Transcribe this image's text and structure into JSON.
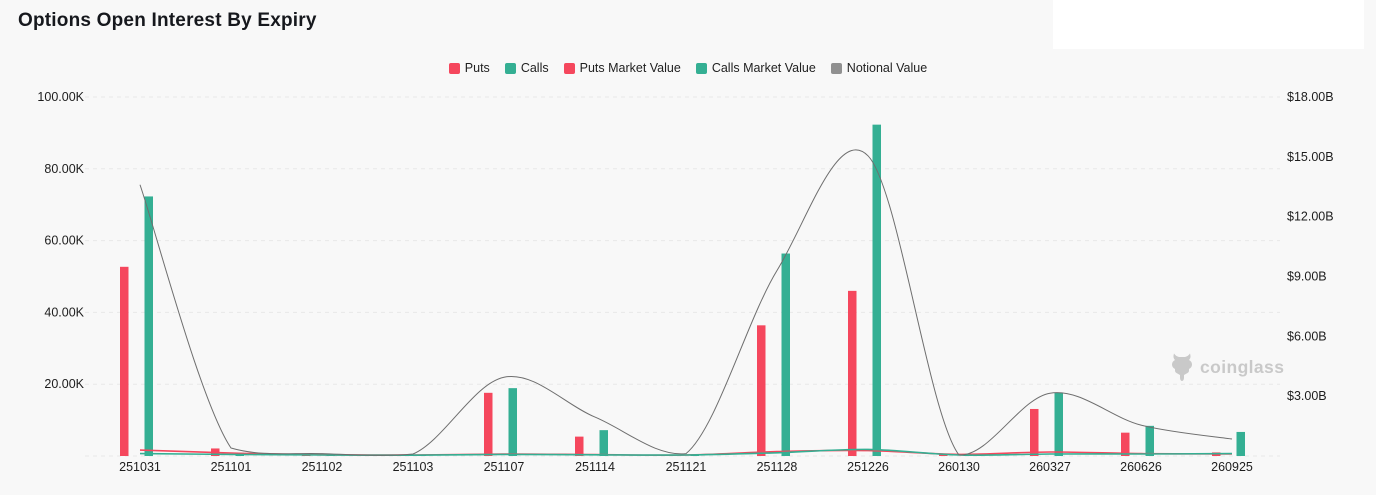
{
  "header": {
    "title": "Options Open Interest By Expiry"
  },
  "legend": {
    "items": [
      {
        "label": "Puts",
        "color": "#F5475D"
      },
      {
        "label": "Calls",
        "color": "#34AF93"
      },
      {
        "label": "Puts Market Value",
        "color": "#F5475D"
      },
      {
        "label": "Calls Market Value",
        "color": "#34AF93"
      },
      {
        "label": "Notional Value",
        "color": "#909090"
      }
    ]
  },
  "watermark": {
    "text": "coinglass"
  },
  "chart_data": {
    "type": "bar+line",
    "title": "Options Open Interest By Expiry",
    "categories": [
      "251031",
      "251101",
      "251102",
      "251103",
      "251107",
      "251114",
      "251121",
      "251128",
      "251226",
      "260130",
      "260327",
      "260626",
      "260925"
    ],
    "series": [
      {
        "name": "Puts",
        "type": "bar",
        "axis": "left",
        "color": "#F5475D",
        "values": [
          52700,
          2100,
          400,
          250,
          17600,
          5400,
          300,
          36400,
          46000,
          400,
          13100,
          6500,
          1000
        ]
      },
      {
        "name": "Calls",
        "type": "bar",
        "axis": "left",
        "color": "#34AF93",
        "values": [
          72300,
          900,
          500,
          300,
          18900,
          7200,
          350,
          56400,
          92300,
          500,
          17700,
          8400,
          6700
        ]
      },
      {
        "name": "Puts Market Value",
        "type": "line",
        "axis": "right",
        "color": "#F5475D",
        "values": [
          0.3,
          0.15,
          0.06,
          0.05,
          0.1,
          0.07,
          0.05,
          0.22,
          0.27,
          0.08,
          0.2,
          0.12,
          0.1
        ]
      },
      {
        "name": "Calls Market Value",
        "type": "line",
        "axis": "right",
        "color": "#34AF93",
        "values": [
          0.12,
          0.08,
          0.05,
          0.04,
          0.08,
          0.06,
          0.05,
          0.16,
          0.33,
          0.05,
          0.1,
          0.1,
          0.12
        ]
      },
      {
        "name": "Notional Value",
        "type": "line",
        "axis": "right",
        "color": "#6E6E6E",
        "values": [
          13.6,
          0.4,
          0.12,
          0.1,
          3.95,
          1.95,
          0.12,
          9.3,
          15.05,
          0.05,
          3.15,
          1.55,
          0.85
        ]
      }
    ],
    "left_axis": {
      "ticks": [
        {
          "label": "100.00K",
          "value": 100000
        },
        {
          "label": "80.00K",
          "value": 80000
        },
        {
          "label": "60.00K",
          "value": 60000
        },
        {
          "label": "40.00K",
          "value": 40000
        },
        {
          "label": "20.00K",
          "value": 20000
        }
      ],
      "max": 100000,
      "min": 0
    },
    "right_axis": {
      "ticks": [
        {
          "label": "$18.00B",
          "value": 18
        },
        {
          "label": "$15.00B",
          "value": 15
        },
        {
          "label": "$12.00B",
          "value": 12
        },
        {
          "label": "$9.00B",
          "value": 9
        },
        {
          "label": "$6.00B",
          "value": 6
        },
        {
          "label": "$3.00B",
          "value": 3
        }
      ],
      "max": 18,
      "min": 0
    },
    "grid": "horizontal-dashed",
    "legend_position": "top-center"
  }
}
